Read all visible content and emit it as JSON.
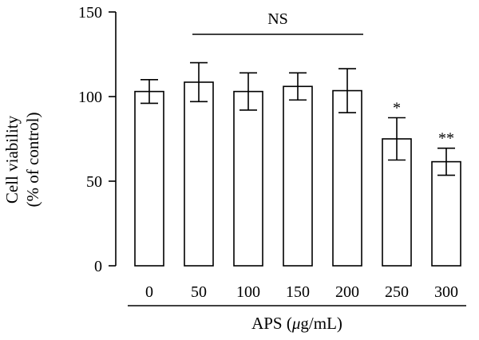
{
  "chart_data": {
    "type": "bar",
    "categories": [
      "0",
      "50",
      "100",
      "150",
      "200",
      "250",
      "300"
    ],
    "values": [
      103,
      108.5,
      103,
      106,
      103.5,
      75,
      61.5
    ],
    "errors": [
      7,
      11.5,
      11,
      8,
      13,
      12.5,
      8
    ],
    "significance": [
      "",
      "",
      "",
      "",
      "",
      "*",
      "**"
    ],
    "ns_bracket": {
      "label": "NS",
      "from_category": "50",
      "to_category": "200"
    },
    "ylim": [
      0,
      150
    ],
    "yticks": [
      0,
      50,
      100,
      150
    ],
    "ylabel_line1": "Cell viability",
    "ylabel_line2": "(% of control)",
    "xlabel_prefix": "APS (",
    "xlabel_mu": "μ",
    "xlabel_suffix": "g/mL)",
    "grid": false,
    "legend": "none"
  }
}
